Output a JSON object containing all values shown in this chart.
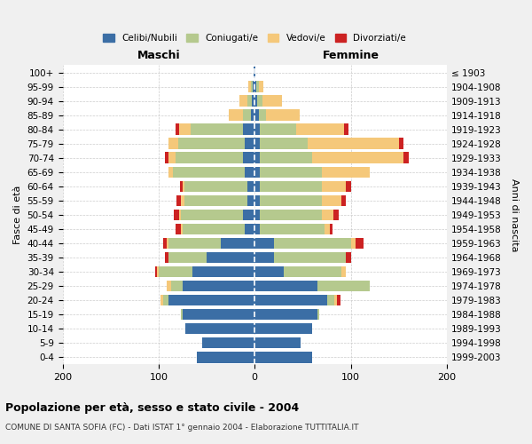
{
  "age_groups": [
    "0-4",
    "5-9",
    "10-14",
    "15-19",
    "20-24",
    "25-29",
    "30-34",
    "35-39",
    "40-44",
    "45-49",
    "50-54",
    "55-59",
    "60-64",
    "65-69",
    "70-74",
    "75-79",
    "80-84",
    "85-89",
    "90-94",
    "95-99",
    "100+"
  ],
  "birth_years": [
    "1999-2003",
    "1994-1998",
    "1989-1993",
    "1984-1988",
    "1979-1983",
    "1974-1978",
    "1969-1973",
    "1964-1968",
    "1959-1963",
    "1954-1958",
    "1949-1953",
    "1944-1948",
    "1939-1943",
    "1934-1938",
    "1929-1933",
    "1924-1928",
    "1919-1923",
    "1914-1918",
    "1909-1913",
    "1904-1908",
    "≤ 1903"
  ],
  "maschi": {
    "celibi": [
      60,
      55,
      72,
      75,
      90,
      75,
      65,
      50,
      35,
      10,
      12,
      8,
      8,
      10,
      12,
      10,
      12,
      4,
      3,
      2,
      1
    ],
    "coniugati": [
      0,
      0,
      0,
      2,
      5,
      12,
      35,
      40,
      55,
      65,
      65,
      65,
      65,
      75,
      70,
      70,
      55,
      8,
      5,
      2,
      0
    ],
    "vedovi": [
      0,
      0,
      0,
      0,
      3,
      5,
      2,
      0,
      2,
      2,
      2,
      4,
      2,
      5,
      8,
      10,
      12,
      15,
      8,
      3,
      0
    ],
    "divorziati": [
      0,
      0,
      0,
      0,
      0,
      0,
      2,
      3,
      3,
      5,
      5,
      4,
      3,
      0,
      3,
      0,
      3,
      0,
      0,
      0,
      0
    ]
  },
  "femmine": {
    "nubili": [
      60,
      48,
      60,
      65,
      75,
      65,
      30,
      20,
      20,
      5,
      5,
      5,
      5,
      5,
      5,
      5,
      5,
      4,
      3,
      2,
      1
    ],
    "coniugate": [
      0,
      0,
      0,
      2,
      8,
      55,
      60,
      75,
      80,
      68,
      65,
      65,
      65,
      65,
      55,
      50,
      38,
      8,
      5,
      2,
      0
    ],
    "vedove": [
      0,
      0,
      0,
      0,
      3,
      0,
      5,
      0,
      5,
      5,
      12,
      20,
      25,
      50,
      95,
      95,
      50,
      35,
      20,
      5,
      0
    ],
    "divorziate": [
      0,
      0,
      0,
      0,
      3,
      0,
      0,
      5,
      8,
      3,
      5,
      5,
      5,
      0,
      5,
      5,
      5,
      0,
      0,
      0,
      0
    ]
  },
  "colors": {
    "celibi": "#3B6EA5",
    "coniugati": "#B5C98E",
    "vedovi": "#F5C87A",
    "divorziati": "#CC2222"
  },
  "legend_labels": [
    "Celibi/Nubili",
    "Coniugati/e",
    "Vedovi/e",
    "Divorziati/e"
  ],
  "title": "Popolazione per età, sesso e stato civile - 2004",
  "subtitle": "COMUNE DI SANTA SOFIA (FC) - Dati ISTAT 1° gennaio 2004 - Elaborazione TUTTITALIA.IT",
  "xlabel_left": "Maschi",
  "xlabel_right": "Femmine",
  "ylabel_left": "Fasce di età",
  "ylabel_right": "Anni di nascita",
  "xlim": 200,
  "background": "#f0f0f0",
  "bar_background": "#ffffff"
}
